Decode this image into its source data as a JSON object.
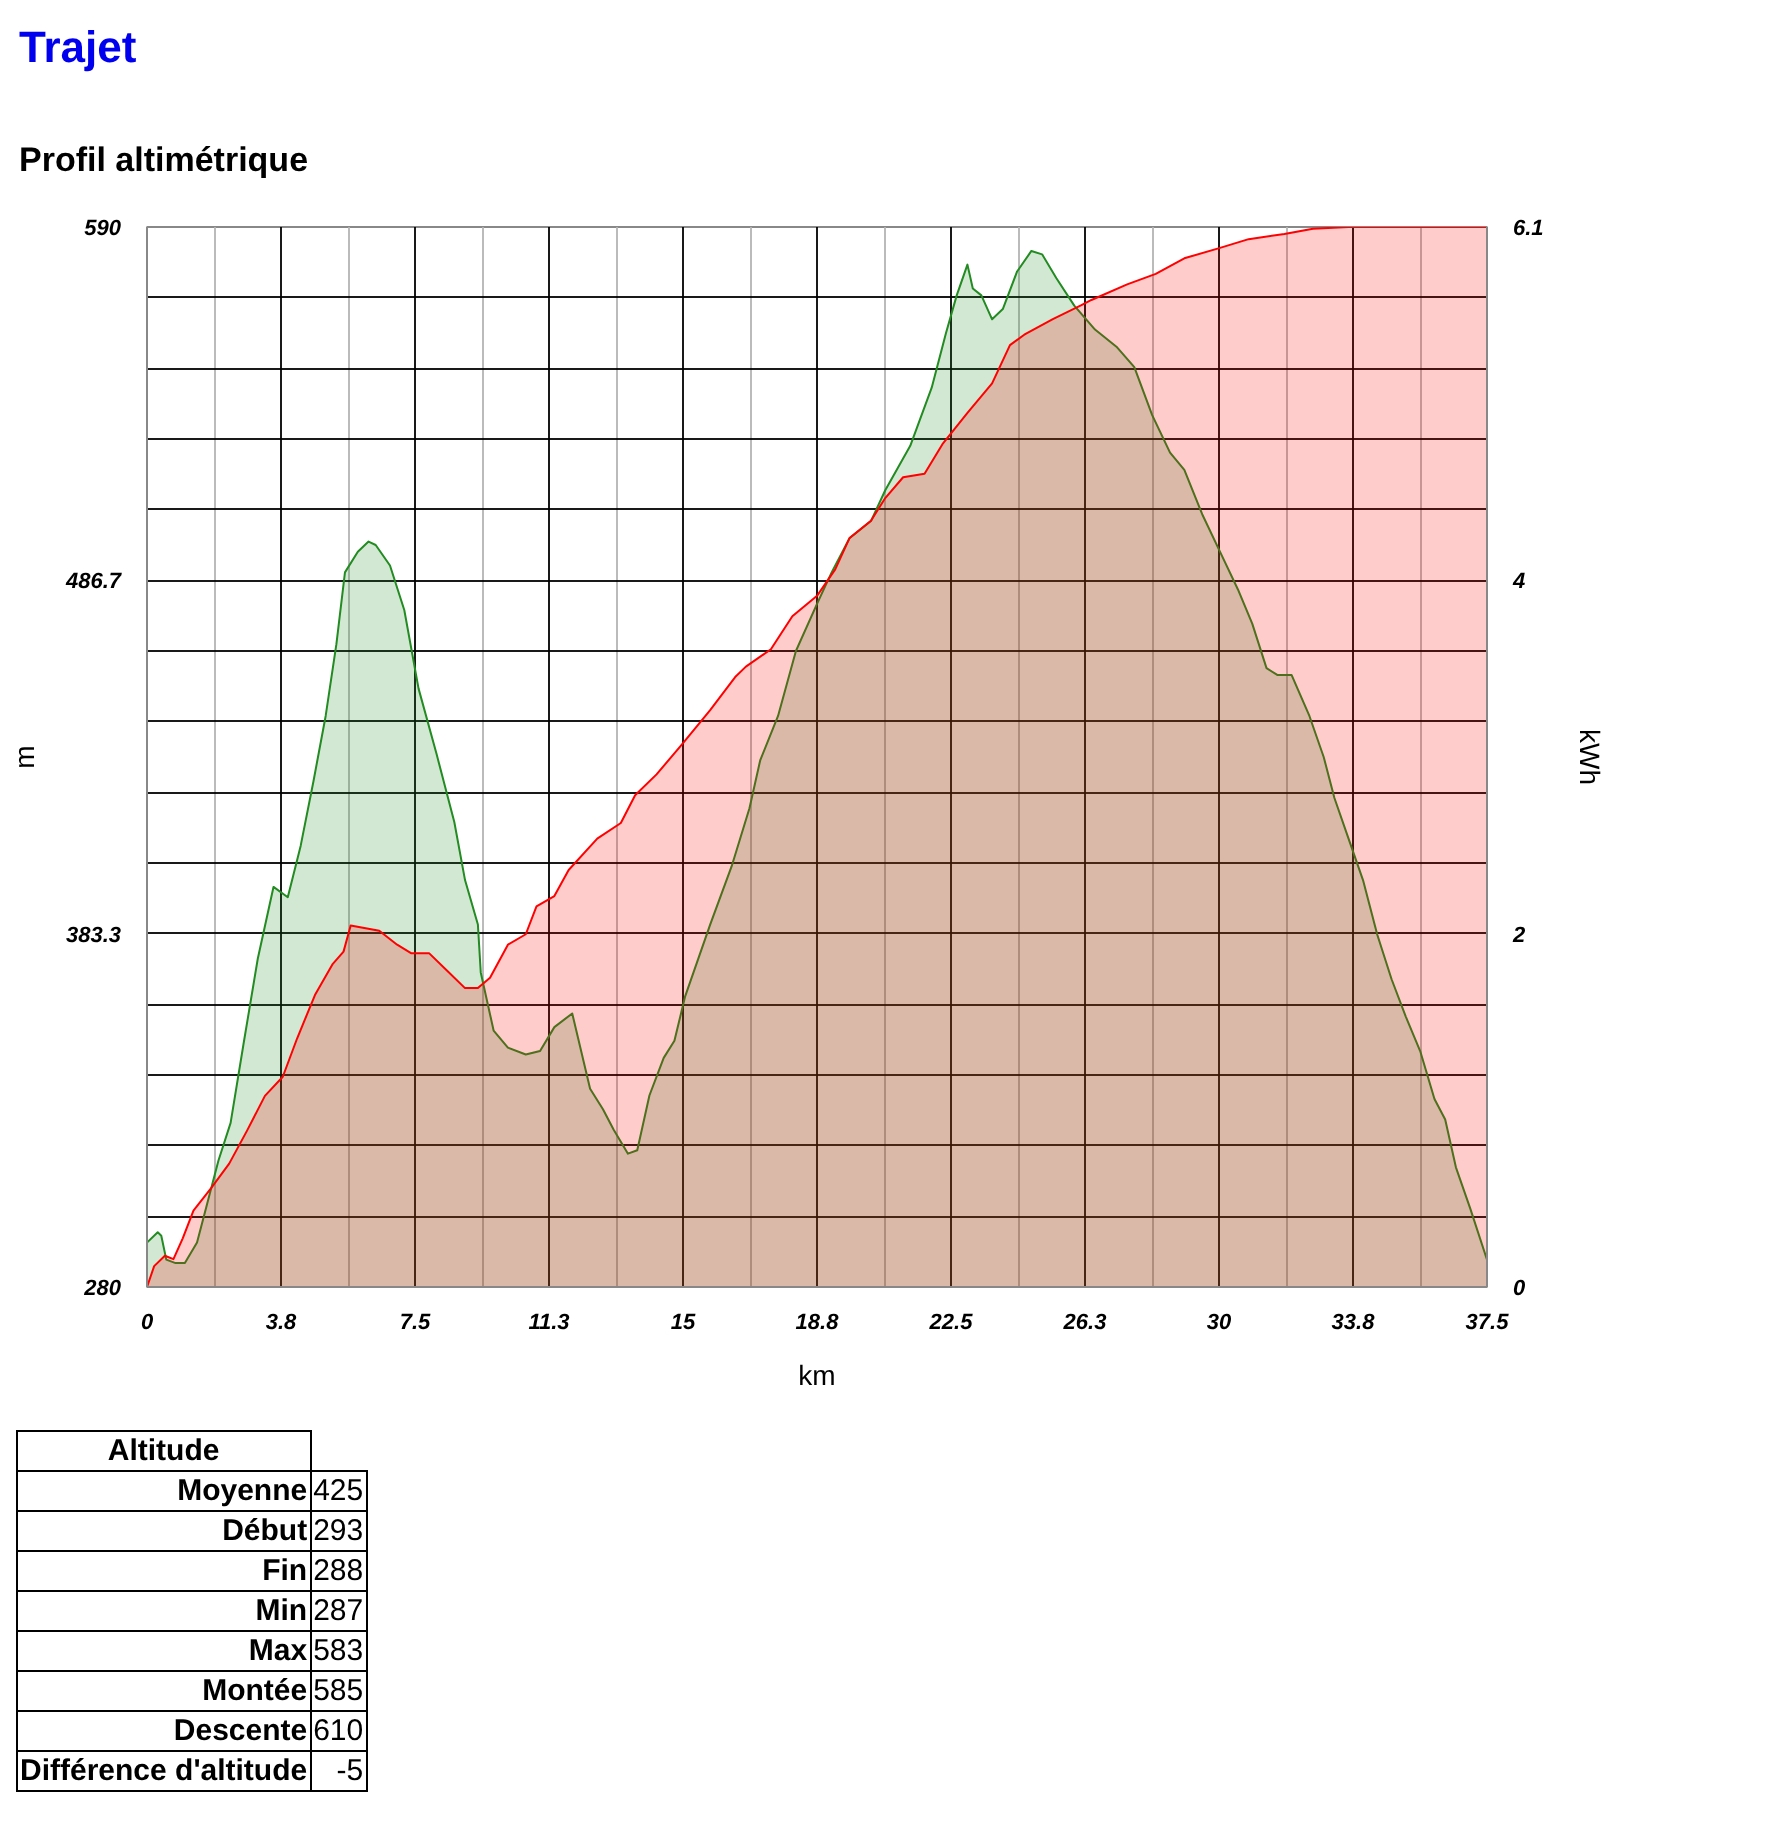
{
  "chart_data": {
    "type": "area",
    "title": "Trajet",
    "subtitle": "Profil altimétrique",
    "xlabel": "km",
    "ylabel": "m",
    "y2label": "kWh",
    "xlim": [
      0,
      37.5
    ],
    "ylim": [
      280,
      590
    ],
    "y2lim": [
      0,
      6.1
    ],
    "xticks": [
      0,
      {
        "value": 1.875,
        "label": null
      },
      {
        "value": 3.75,
        "label": "3.8"
      },
      {
        "value": 5.625,
        "label": null
      },
      7.5,
      {
        "value": 9.375,
        "label": null
      },
      {
        "value": 11.25,
        "label": "11.3"
      },
      {
        "value": 13.125,
        "label": null
      },
      15,
      {
        "value": 16.875,
        "label": null
      },
      {
        "value": 18.75,
        "label": "18.8"
      },
      {
        "value": 20.625,
        "label": null
      },
      22.5,
      {
        "value": 24.375,
        "label": null
      },
      {
        "value": 26.25,
        "label": "26.3"
      },
      {
        "value": 28.125,
        "label": null
      },
      30,
      {
        "value": 31.875,
        "label": null
      },
      {
        "value": 33.75,
        "label": "33.8"
      },
      {
        "value": 35.625,
        "label": null
      },
      37.5
    ],
    "yticks": [
      280,
      {
        "value": 300.67,
        "label": null
      },
      {
        "value": 321.33,
        "label": null
      },
      {
        "value": 342,
        "label": null
      },
      {
        "value": 362.67,
        "label": null
      },
      383.3,
      {
        "value": 404,
        "label": null
      },
      {
        "value": 424.67,
        "label": null
      },
      {
        "value": 445.33,
        "label": null
      },
      {
        "value": 466,
        "label": null
      },
      486.7,
      {
        "value": 507.33,
        "label": null
      },
      {
        "value": 528,
        "label": null
      },
      {
        "value": 548.67,
        "label": null
      },
      {
        "value": 569.33,
        "label": null
      },
      590
    ],
    "y2ticks": [
      0,
      {
        "value": 2.033,
        "label": "2"
      },
      {
        "value": 4.067,
        "label": "4"
      },
      6.1
    ],
    "grid": true,
    "series": [
      {
        "color": "#228b22",
        "x": [
          0,
          0.3,
          0.4,
          0.54,
          0.8,
          1.06,
          1.4,
          1.7,
          2.0,
          2.34,
          2.7,
          3.1,
          3.54,
          3.94,
          4.3,
          4.66,
          5.0,
          5.3,
          5.54,
          5.9,
          6.2,
          6.4,
          6.8,
          7.2,
          7.6,
          8.1,
          8.6,
          8.9,
          9.26,
          9.34,
          9.7,
          10.1,
          10.6,
          11.0,
          11.4,
          11.9,
          12.4,
          12.76,
          13.06,
          13.46,
          13.72,
          14.06,
          14.46,
          14.76,
          15.06,
          15.76,
          16.36,
          16.86,
          17.16,
          17.66,
          18.16,
          18.76,
          19.16,
          19.66,
          20.26,
          20.66,
          21.36,
          21.96,
          22.36,
          22.66,
          22.96,
          23.11,
          23.35,
          23.65,
          23.95,
          24.35,
          24.75,
          25.05,
          25.45,
          25.95,
          26.53,
          27.13,
          27.63,
          28.13,
          28.63,
          29.03,
          29.53,
          30.03,
          30.53,
          30.93,
          31.33,
          31.63,
          32.03,
          32.53,
          32.93,
          33.23,
          33.63,
          34.03,
          34.43,
          34.83,
          35.23,
          35.63,
          36.03,
          36.33,
          36.63,
          37.03,
          37.5
        ],
        "values": [
          293,
          296,
          295,
          288,
          287,
          287,
          293,
          305,
          317,
          328,
          351,
          376,
          397,
          394,
          409,
          428,
          447,
          468,
          489,
          495,
          498,
          497,
          491,
          478,
          455,
          436,
          416,
          399,
          386,
          372,
          355,
          350,
          348,
          349,
          356,
          360,
          338,
          332,
          326,
          319,
          320,
          336,
          347,
          352,
          365,
          386,
          403,
          420,
          434,
          447,
          466,
          480,
          489,
          499,
          504,
          513,
          526,
          543,
          559,
          570,
          579,
          572,
          570,
          563,
          566,
          577,
          583,
          582,
          575,
          567,
          560,
          555,
          549,
          535,
          524,
          519,
          506,
          495,
          484,
          474,
          461,
          459,
          459,
          447,
          435,
          423,
          411,
          399,
          383,
          370,
          359,
          349,
          335,
          329,
          315,
          303,
          288
        ]
      },
      {
        "color": "#ff0000",
        "axis": "y2",
        "x": [
          0,
          0.2,
          0.5,
          0.74,
          1.0,
          1.3,
          1.8,
          2.3,
          2.8,
          3.3,
          3.8,
          4.2,
          4.7,
          5.2,
          5.5,
          5.7,
          6.5,
          7.0,
          7.4,
          7.9,
          8.4,
          8.9,
          9.26,
          9.6,
          10.1,
          10.6,
          10.9,
          11.4,
          11.8,
          12.6,
          13.26,
          13.66,
          14.26,
          14.96,
          15.76,
          16.46,
          16.76,
          17.46,
          18.06,
          18.76,
          19.26,
          19.66,
          20.26,
          20.66,
          21.16,
          21.76,
          22.26,
          22.96,
          23.65,
          24.15,
          24.55,
          25.35,
          26.15,
          26.43,
          27.43,
          28.23,
          29.03,
          30.03,
          30.83,
          31.83,
          32.63,
          33.63,
          37.5
        ],
        "values": [
          0,
          0.12,
          0.18,
          0.16,
          0.28,
          0.44,
          0.57,
          0.71,
          0.9,
          1.1,
          1.21,
          1.43,
          1.68,
          1.86,
          1.93,
          2.08,
          2.05,
          1.97,
          1.92,
          1.92,
          1.82,
          1.72,
          1.72,
          1.78,
          1.97,
          2.03,
          2.19,
          2.25,
          2.4,
          2.58,
          2.67,
          2.83,
          2.95,
          3.12,
          3.32,
          3.51,
          3.57,
          3.67,
          3.86,
          3.98,
          4.13,
          4.31,
          4.41,
          4.54,
          4.66,
          4.68,
          4.85,
          5.03,
          5.2,
          5.42,
          5.48,
          5.57,
          5.65,
          5.68,
          5.77,
          5.83,
          5.92,
          5.98,
          6.03,
          6.06,
          6.09,
          6.1,
          6.1
        ]
      }
    ],
    "annotations": [
      "Altitude",
      "Moyenne",
      "425",
      "Début",
      "293",
      "Fin",
      "288",
      "Min",
      "287",
      "Max",
      "583",
      "Montée",
      "585",
      "Descente",
      "610",
      "Différence d'altitude",
      "-5"
    ]
  }
}
